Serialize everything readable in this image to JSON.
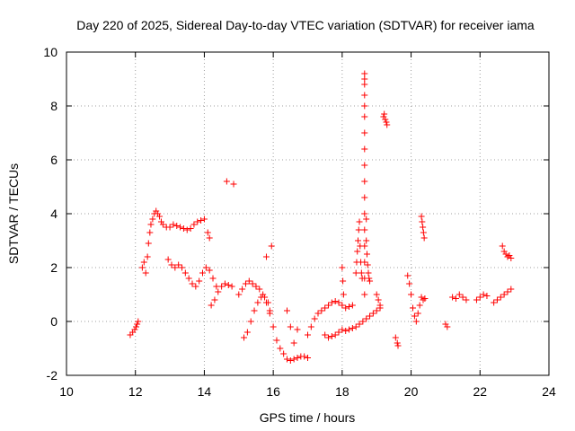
{
  "chart_data": {
    "type": "scatter",
    "title": "Day 220 of 2025, Sidereal Day-to-day VTEC variation (SDTVAR) for receiver iama",
    "xlabel": "GPS time / hours",
    "ylabel": "SDTVAR / TECUs",
    "xlim": [
      10,
      24
    ],
    "ylim": [
      -2,
      10
    ],
    "xticks": [
      "10",
      "12",
      "14",
      "16",
      "18",
      "20",
      "22",
      "24"
    ],
    "yticks": [
      "-2",
      "0",
      "2",
      "4",
      "6",
      "8",
      "10"
    ],
    "grid": true,
    "marker": "+",
    "color": "#ff0000",
    "series": [
      {
        "name": "SDTVAR",
        "x": [
          11.85,
          11.92,
          11.98,
          12.02,
          12.05,
          12.08,
          12.2,
          12.25,
          12.3,
          12.35,
          12.38,
          12.42,
          12.45,
          12.5,
          12.55,
          12.6,
          12.65,
          12.7,
          12.75,
          12.8,
          12.9,
          13.0,
          13.1,
          13.2,
          13.3,
          13.4,
          13.5,
          13.6,
          13.7,
          13.8,
          13.9,
          14.0,
          14.1,
          14.15,
          12.95,
          13.05,
          13.15,
          13.25,
          13.35,
          13.45,
          13.55,
          13.65,
          13.75,
          13.85,
          13.95,
          14.05,
          14.15,
          14.25,
          14.35,
          14.2,
          14.3,
          14.4,
          14.5,
          14.6,
          14.7,
          14.8,
          14.65,
          14.85,
          15.0,
          15.1,
          15.2,
          15.3,
          15.4,
          15.5,
          15.6,
          15.7,
          15.8,
          15.9,
          15.15,
          15.25,
          15.35,
          15.45,
          15.55,
          15.65,
          15.75,
          15.85,
          15.8,
          15.95,
          15.9,
          16.0,
          16.1,
          16.2,
          16.3,
          16.4,
          16.5,
          16.6,
          16.7,
          16.8,
          16.9,
          17.0,
          16.4,
          16.5,
          16.6,
          16.7,
          17.0,
          17.1,
          17.2,
          17.3,
          17.4,
          17.5,
          17.6,
          17.7,
          17.8,
          17.9,
          18.0,
          18.1,
          18.2,
          18.3,
          17.5,
          17.6,
          17.7,
          17.8,
          17.9,
          18.0,
          18.1,
          18.2,
          18.3,
          18.4,
          18.5,
          18.6,
          18.7,
          18.8,
          18.9,
          19.0,
          19.1,
          18.0,
          18.02,
          18.04,
          18.4,
          18.42,
          18.44,
          18.46,
          18.48,
          18.5,
          18.52,
          18.54,
          18.56,
          18.58,
          18.65,
          18.65,
          18.65,
          18.65,
          18.65,
          18.65,
          18.65,
          18.65,
          18.65,
          18.65,
          18.65,
          18.65,
          18.65,
          18.65,
          18.65,
          18.65,
          18.65,
          18.7,
          18.7,
          18.72,
          18.74,
          18.76,
          18.78,
          18.8,
          19.0,
          19.05,
          19.1,
          19.2,
          19.25,
          19.3,
          19.22,
          19.28,
          19.55,
          19.6,
          19.62,
          19.9,
          19.95,
          20.0,
          20.05,
          20.1,
          20.15,
          20.2,
          20.25,
          20.3,
          20.35,
          20.4,
          20.3,
          20.32,
          20.34,
          20.36,
          20.38,
          21.0,
          21.05,
          21.2,
          21.3,
          21.4,
          21.5,
          21.6,
          21.9,
          22.0,
          22.1,
          22.2,
          22.4,
          22.5,
          22.6,
          22.7,
          22.8,
          22.9,
          22.65,
          22.7,
          22.75,
          22.8,
          22.85,
          22.9
        ],
        "y": [
          -0.5,
          -0.4,
          -0.3,
          -0.2,
          -0.1,
          0.0,
          2.0,
          2.2,
          1.8,
          2.4,
          2.9,
          3.3,
          3.6,
          3.8,
          4.0,
          4.1,
          4.0,
          3.9,
          3.7,
          3.6,
          3.5,
          3.5,
          3.6,
          3.55,
          3.5,
          3.45,
          3.4,
          3.45,
          3.6,
          3.7,
          3.75,
          3.8,
          3.3,
          3.1,
          2.3,
          2.1,
          2.0,
          2.1,
          2.0,
          1.8,
          1.6,
          1.4,
          1.3,
          1.5,
          1.8,
          2.0,
          1.9,
          1.6,
          1.3,
          0.6,
          0.8,
          1.1,
          1.3,
          1.4,
          1.35,
          1.3,
          5.2,
          5.1,
          1.0,
          1.2,
          1.4,
          1.5,
          1.4,
          1.3,
          1.2,
          1.0,
          0.7,
          0.4,
          -0.6,
          -0.4,
          0.0,
          0.4,
          0.7,
          0.9,
          0.9,
          0.7,
          2.4,
          2.8,
          0.3,
          -0.2,
          -0.7,
          -1.0,
          -1.2,
          -1.4,
          -1.45,
          -1.4,
          -1.35,
          -1.3,
          -1.3,
          -1.35,
          0.4,
          -0.2,
          -0.8,
          -0.3,
          -0.5,
          -0.2,
          0.1,
          0.3,
          0.4,
          0.5,
          0.6,
          0.7,
          0.75,
          0.7,
          0.6,
          0.5,
          0.55,
          0.6,
          -0.5,
          -0.6,
          -0.55,
          -0.5,
          -0.4,
          -0.3,
          -0.35,
          -0.3,
          -0.25,
          -0.2,
          -0.1,
          0.0,
          0.1,
          0.2,
          0.3,
          0.4,
          0.5,
          2.0,
          1.5,
          1.0,
          1.8,
          2.2,
          2.6,
          3.0,
          3.4,
          3.7,
          2.8,
          2.2,
          1.8,
          1.6,
          1.0,
          1.6,
          2.2,
          2.8,
          3.4,
          4.0,
          4.6,
          5.2,
          5.8,
          6.4,
          7.0,
          7.6,
          8.0,
          8.4,
          8.8,
          9.0,
          9.2,
          3.8,
          3.0,
          2.5,
          2.1,
          1.8,
          1.6,
          1.5,
          1.0,
          0.8,
          0.6,
          7.6,
          7.5,
          7.3,
          7.7,
          7.4,
          -0.6,
          -0.8,
          -0.9,
          1.7,
          1.4,
          1.0,
          0.5,
          0.2,
          0.0,
          0.3,
          0.6,
          0.9,
          0.8,
          0.85,
          3.9,
          3.7,
          3.5,
          3.3,
          3.1,
          -0.1,
          -0.2,
          0.9,
          0.85,
          1.0,
          0.9,
          0.8,
          0.8,
          0.9,
          1.0,
          0.95,
          0.7,
          0.8,
          0.9,
          1.0,
          1.1,
          1.2,
          2.8,
          2.6,
          2.5,
          2.4,
          2.45,
          2.35
        ]
      }
    ]
  }
}
